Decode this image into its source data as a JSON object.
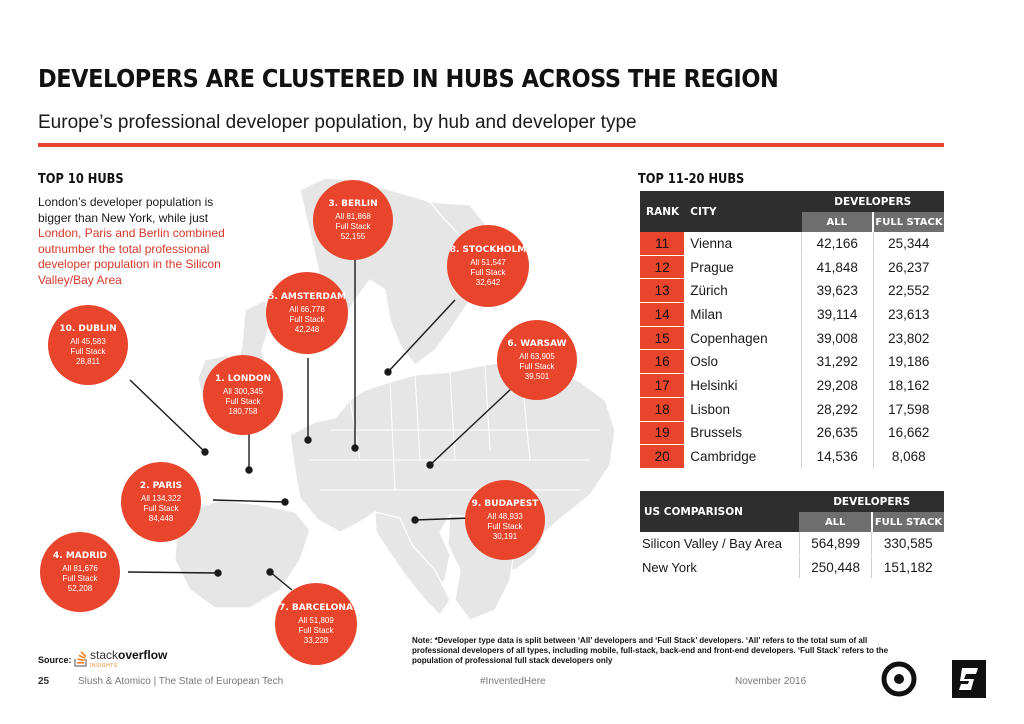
{
  "header": {
    "title": "DEVELOPERS ARE CLUSTERED IN HUBS ACROSS THE REGION",
    "subtitle": "Europe’s professional developer population, by hub and developer type"
  },
  "top10": {
    "heading": "TOP 10 HUBS",
    "intro_1": "London’s developer population is bigger than New York, while just ",
    "intro_2": "London, Paris and Berlin combined outnumber the total professional developer population in the Silicon Valley/Bay Area",
    "hubs": [
      {
        "name": "1. LONDON",
        "all": "All 300,345",
        "fs_label": "Full Stack",
        "fs": "180,758"
      },
      {
        "name": "2. PARIS",
        "all": "All 134,322",
        "fs_label": "Full Stack",
        "fs": "84,448"
      },
      {
        "name": "3. BERLIN",
        "all": "All 81,868",
        "fs_label": "Full Stack",
        "fs": "52,155"
      },
      {
        "name": "4. MADRID",
        "all": "All 81,676",
        "fs_label": "Full Stack",
        "fs": "52,208"
      },
      {
        "name": "5. AMSTERDAM",
        "all": "All 66,778",
        "fs_label": "Full Stack",
        "fs": "42,248"
      },
      {
        "name": "6. WARSAW",
        "all": "All 63,905",
        "fs_label": "Full Stack",
        "fs": "39,501"
      },
      {
        "name": "7. BARCELONA",
        "all": "All 51,809",
        "fs_label": "Full Stack",
        "fs": "33,228"
      },
      {
        "name": "8. STOCKHOLM",
        "all": "All 51,547",
        "fs_label": "Full Stack",
        "fs": "32,642"
      },
      {
        "name": "9. BUDAPEST",
        "all": "All 48,933",
        "fs_label": "Full Stack",
        "fs": "30,191"
      },
      {
        "name": "10. DUBLIN",
        "all": "All 45,583",
        "fs_label": "Full Stack",
        "fs": "28,811"
      }
    ]
  },
  "top20": {
    "heading": "TOP 11-20 HUBS",
    "col_rank": "RANK",
    "col_city": "CITY",
    "col_dev": "DEVELOPERS",
    "col_all": "ALL",
    "col_fs": "FULL STACK",
    "rows": [
      {
        "rank": "11",
        "city": "Vienna",
        "all": "42,166",
        "fs": "25,344"
      },
      {
        "rank": "12",
        "city": "Prague",
        "all": "41,848",
        "fs": "26,237"
      },
      {
        "rank": "13",
        "city": "Zürich",
        "all": "39,623",
        "fs": "22,552"
      },
      {
        "rank": "14",
        "city": "Milan",
        "all": "39,114",
        "fs": "23,613"
      },
      {
        "rank": "15",
        "city": "Copenhagen",
        "all": "39,008",
        "fs": "23,802"
      },
      {
        "rank": "16",
        "city": "Oslo",
        "all": "31,292",
        "fs": "19,186"
      },
      {
        "rank": "17",
        "city": "Helsinki",
        "all": "29,208",
        "fs": "18,162"
      },
      {
        "rank": "18",
        "city": "Lisbon",
        "all": "28,292",
        "fs": "17,598"
      },
      {
        "rank": "19",
        "city": "Brussels",
        "all": "26,635",
        "fs": "16,662"
      },
      {
        "rank": "20",
        "city": "Cambridge",
        "all": "14,536",
        "fs": "8,068"
      }
    ]
  },
  "us": {
    "heading": "US COMPARISON",
    "col_dev": "DEVELOPERS",
    "col_all": "ALL",
    "col_fs": "FULL STACK",
    "rows": [
      {
        "city": "Silicon Valley / Bay Area",
        "all": "564,899",
        "fs": "330,585"
      },
      {
        "city": "New York",
        "all": "250,448",
        "fs": "151,182"
      }
    ]
  },
  "note": "Note: *Developer type data is split between ‘All’ developers and ‘Full Stack’ developers. ‘All’ refers to the total sum of all professional developers of all types, including mobile, full-stack, back-end and front-end developers. ‘Full Stack’ refers to the population of professional full stack developers only",
  "source": {
    "label": "Source:",
    "logo_text_a": "stack",
    "logo_text_b": "overflow",
    "logo_sub": "INSIGHTS"
  },
  "footer": {
    "page": "25",
    "publisher": "Slush & Atomico  |  The State of European Tech",
    "hashtag": "#InventedHere",
    "date": "November 2016"
  },
  "colors": {
    "accent": "#e8452c",
    "dark": "#2e2e2e",
    "map": "#e6e6e6"
  },
  "icons": [
    "atomico-logo-icon",
    "slush-logo-icon",
    "stackoverflow-logo-icon"
  ]
}
